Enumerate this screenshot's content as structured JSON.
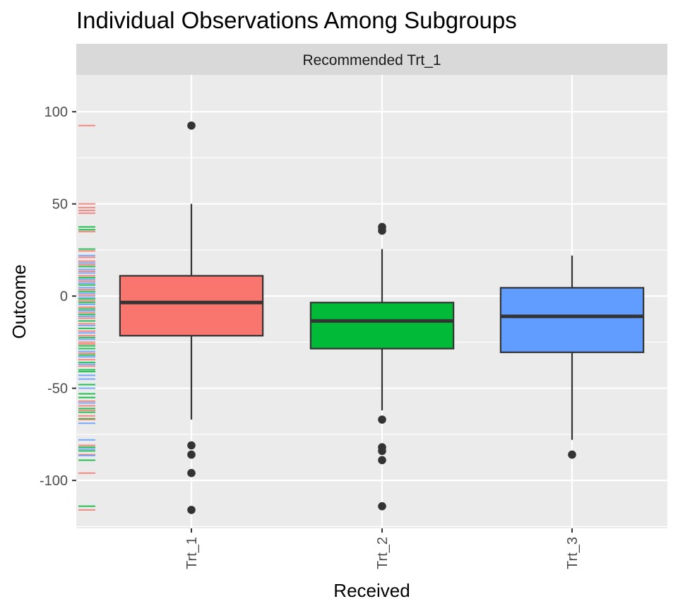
{
  "chart_data": {
    "type": "boxplot",
    "title": "Individual Observations Among Subgroups",
    "facet_label": "Recommended Trt_1",
    "xlabel": "Received",
    "ylabel": "Outcome",
    "ylim": [
      -126,
      120
    ],
    "y_ticks": [
      100,
      50,
      0,
      -50,
      -100
    ],
    "y_tick_labels": [
      "100",
      "50",
      "0",
      "-50",
      "-100"
    ],
    "categories": [
      "Trt_1",
      "Trt_2",
      "Trt_3"
    ],
    "colors": {
      "Trt_1": "#F8766D",
      "Trt_2": "#00BA38",
      "Trt_3": "#619CFF"
    },
    "boxes": [
      {
        "category": "Trt_1",
        "lower_whisker": -67,
        "q1": -21.5,
        "median": -3.5,
        "q3": 11,
        "upper_whisker": 50,
        "outliers": [
          92.5,
          -81,
          -86,
          -96,
          -116
        ]
      },
      {
        "category": "Trt_2",
        "lower_whisker": -62,
        "q1": -28.5,
        "median": -13.5,
        "q3": -3.5,
        "upper_whisker": 25.5,
        "outliers": [
          37.5,
          35.5,
          -67,
          -82,
          -84,
          -89,
          -114
        ]
      },
      {
        "category": "Trt_3",
        "lower_whisker": -78,
        "q1": -30.5,
        "median": -11,
        "q3": 4.5,
        "upper_whisker": 22,
        "outliers": [
          -86
        ]
      }
    ],
    "rug": [
      {
        "y": 92.5,
        "group": "Trt_1"
      },
      {
        "y": 50,
        "group": "Trt_1"
      },
      {
        "y": 48,
        "group": "Trt_1"
      },
      {
        "y": 46.5,
        "group": "Trt_1"
      },
      {
        "y": 45,
        "group": "Trt_1"
      },
      {
        "y": 37.5,
        "group": "Trt_2"
      },
      {
        "y": 36,
        "group": "Trt_2"
      },
      {
        "y": 35,
        "group": "Trt_1"
      },
      {
        "y": 25.5,
        "group": "Trt_2"
      },
      {
        "y": 24.5,
        "group": "Trt_1"
      },
      {
        "y": 22,
        "group": "Trt_3"
      },
      {
        "y": 21,
        "group": "Trt_1"
      },
      {
        "y": 19,
        "group": "Trt_1"
      },
      {
        "y": 18,
        "group": "Trt_3"
      },
      {
        "y": 17,
        "group": "Trt_1"
      },
      {
        "y": 16,
        "group": "Trt_2"
      },
      {
        "y": 14.5,
        "group": "Trt_3"
      },
      {
        "y": 13.5,
        "group": "Trt_1"
      },
      {
        "y": 12.5,
        "group": "Trt_3"
      },
      {
        "y": 11,
        "group": "Trt_1"
      },
      {
        "y": 10,
        "group": "Trt_2"
      },
      {
        "y": 9,
        "group": "Trt_3"
      },
      {
        "y": 8,
        "group": "Trt_1"
      },
      {
        "y": 7,
        "group": "Trt_3"
      },
      {
        "y": 6,
        "group": "Trt_2"
      },
      {
        "y": 4.5,
        "group": "Trt_3"
      },
      {
        "y": 3.5,
        "group": "Trt_1"
      },
      {
        "y": 2.5,
        "group": "Trt_2"
      },
      {
        "y": 1.5,
        "group": "Trt_3"
      },
      {
        "y": 0.5,
        "group": "Trt_1"
      },
      {
        "y": -0.5,
        "group": "Trt_3"
      },
      {
        "y": -1.5,
        "group": "Trt_2"
      },
      {
        "y": -2.5,
        "group": "Trt_1"
      },
      {
        "y": -3.5,
        "group": "Trt_2"
      },
      {
        "y": -4.5,
        "group": "Trt_3"
      },
      {
        "y": -6,
        "group": "Trt_1"
      },
      {
        "y": -7,
        "group": "Trt_2"
      },
      {
        "y": -8,
        "group": "Trt_3"
      },
      {
        "y": -9,
        "group": "Trt_1"
      },
      {
        "y": -10,
        "group": "Trt_2"
      },
      {
        "y": -11,
        "group": "Trt_3"
      },
      {
        "y": -12,
        "group": "Trt_1"
      },
      {
        "y": -13.5,
        "group": "Trt_2"
      },
      {
        "y": -15,
        "group": "Trt_1"
      },
      {
        "y": -16,
        "group": "Trt_3"
      },
      {
        "y": -17.5,
        "group": "Trt_2"
      },
      {
        "y": -19,
        "group": "Trt_1"
      },
      {
        "y": -20,
        "group": "Trt_3"
      },
      {
        "y": -21.5,
        "group": "Trt_1"
      },
      {
        "y": -22.5,
        "group": "Trt_2"
      },
      {
        "y": -23.5,
        "group": "Trt_3"
      },
      {
        "y": -25,
        "group": "Trt_1"
      },
      {
        "y": -26,
        "group": "Trt_1"
      },
      {
        "y": -27,
        "group": "Trt_2"
      },
      {
        "y": -28.5,
        "group": "Trt_2"
      },
      {
        "y": -30,
        "group": "Trt_3"
      },
      {
        "y": -31,
        "group": "Trt_1"
      },
      {
        "y": -32,
        "group": "Trt_2"
      },
      {
        "y": -33,
        "group": "Trt_3"
      },
      {
        "y": -34.5,
        "group": "Trt_1"
      },
      {
        "y": -36,
        "group": "Trt_2"
      },
      {
        "y": -37,
        "group": "Trt_3"
      },
      {
        "y": -38,
        "group": "Trt_1"
      },
      {
        "y": -40,
        "group": "Trt_2"
      },
      {
        "y": -41,
        "group": "Trt_2"
      },
      {
        "y": -43,
        "group": "Trt_3"
      },
      {
        "y": -45,
        "group": "Trt_3"
      },
      {
        "y": -48,
        "group": "Trt_2"
      },
      {
        "y": -50,
        "group": "Trt_3"
      },
      {
        "y": -53,
        "group": "Trt_2"
      },
      {
        "y": -55,
        "group": "Trt_2"
      },
      {
        "y": -57,
        "group": "Trt_1"
      },
      {
        "y": -58,
        "group": "Trt_3"
      },
      {
        "y": -59.5,
        "group": "Trt_1"
      },
      {
        "y": -61,
        "group": "Trt_2"
      },
      {
        "y": -62,
        "group": "Trt_1"
      },
      {
        "y": -63,
        "group": "Trt_2"
      },
      {
        "y": -65,
        "group": "Trt_1"
      },
      {
        "y": -66.5,
        "group": "Trt_2"
      },
      {
        "y": -67,
        "group": "Trt_1"
      },
      {
        "y": -69,
        "group": "Trt_3"
      },
      {
        "y": -78,
        "group": "Trt_3"
      },
      {
        "y": -81,
        "group": "Trt_1"
      },
      {
        "y": -82,
        "group": "Trt_2"
      },
      {
        "y": -83,
        "group": "Trt_3"
      },
      {
        "y": -84,
        "group": "Trt_2"
      },
      {
        "y": -86,
        "group": "Trt_1"
      },
      {
        "y": -86.5,
        "group": "Trt_3"
      },
      {
        "y": -89,
        "group": "Trt_2"
      },
      {
        "y": -96,
        "group": "Trt_1"
      },
      {
        "y": -114,
        "group": "Trt_2"
      },
      {
        "y": -116,
        "group": "Trt_1"
      }
    ]
  }
}
